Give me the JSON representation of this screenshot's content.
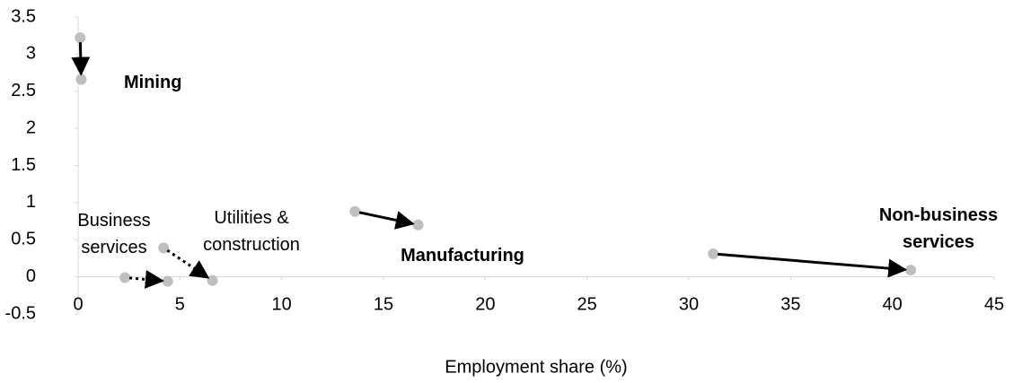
{
  "chart_data": {
    "type": "scatter",
    "x_label": "Employment share (%)",
    "xlim": [
      0,
      45
    ],
    "xticks": [
      0,
      5,
      10,
      15,
      20,
      25,
      30,
      35,
      40,
      45
    ],
    "ylim": [
      -0.5,
      3.5
    ],
    "yticks": [
      -0.5,
      0,
      0.5,
      1,
      1.5,
      2,
      2.5,
      3,
      3.5
    ],
    "point_color": "#bfbfbf",
    "arrow_color": "#000000",
    "series": [
      {
        "name": "Mining",
        "x": [
          0.1,
          0.15
        ],
        "y": [
          3.22,
          2.66
        ],
        "dotted": false,
        "bold": true
      },
      {
        "name": "Business services",
        "x": [
          2.3,
          4.4
        ],
        "y": [
          -0.01,
          -0.06
        ],
        "dotted": true,
        "bold": false
      },
      {
        "name": "Utilities & construction",
        "x": [
          4.2,
          6.6
        ],
        "y": [
          0.39,
          -0.05
        ],
        "dotted": true,
        "bold": false
      },
      {
        "name": "Manufacturing",
        "x": [
          13.6,
          16.7
        ],
        "y": [
          0.88,
          0.7
        ],
        "dotted": false,
        "bold": true
      },
      {
        "name": "Non-business services",
        "x": [
          31.2,
          40.9
        ],
        "y": [
          0.31,
          0.09
        ],
        "dotted": false,
        "bold": true
      }
    ]
  }
}
